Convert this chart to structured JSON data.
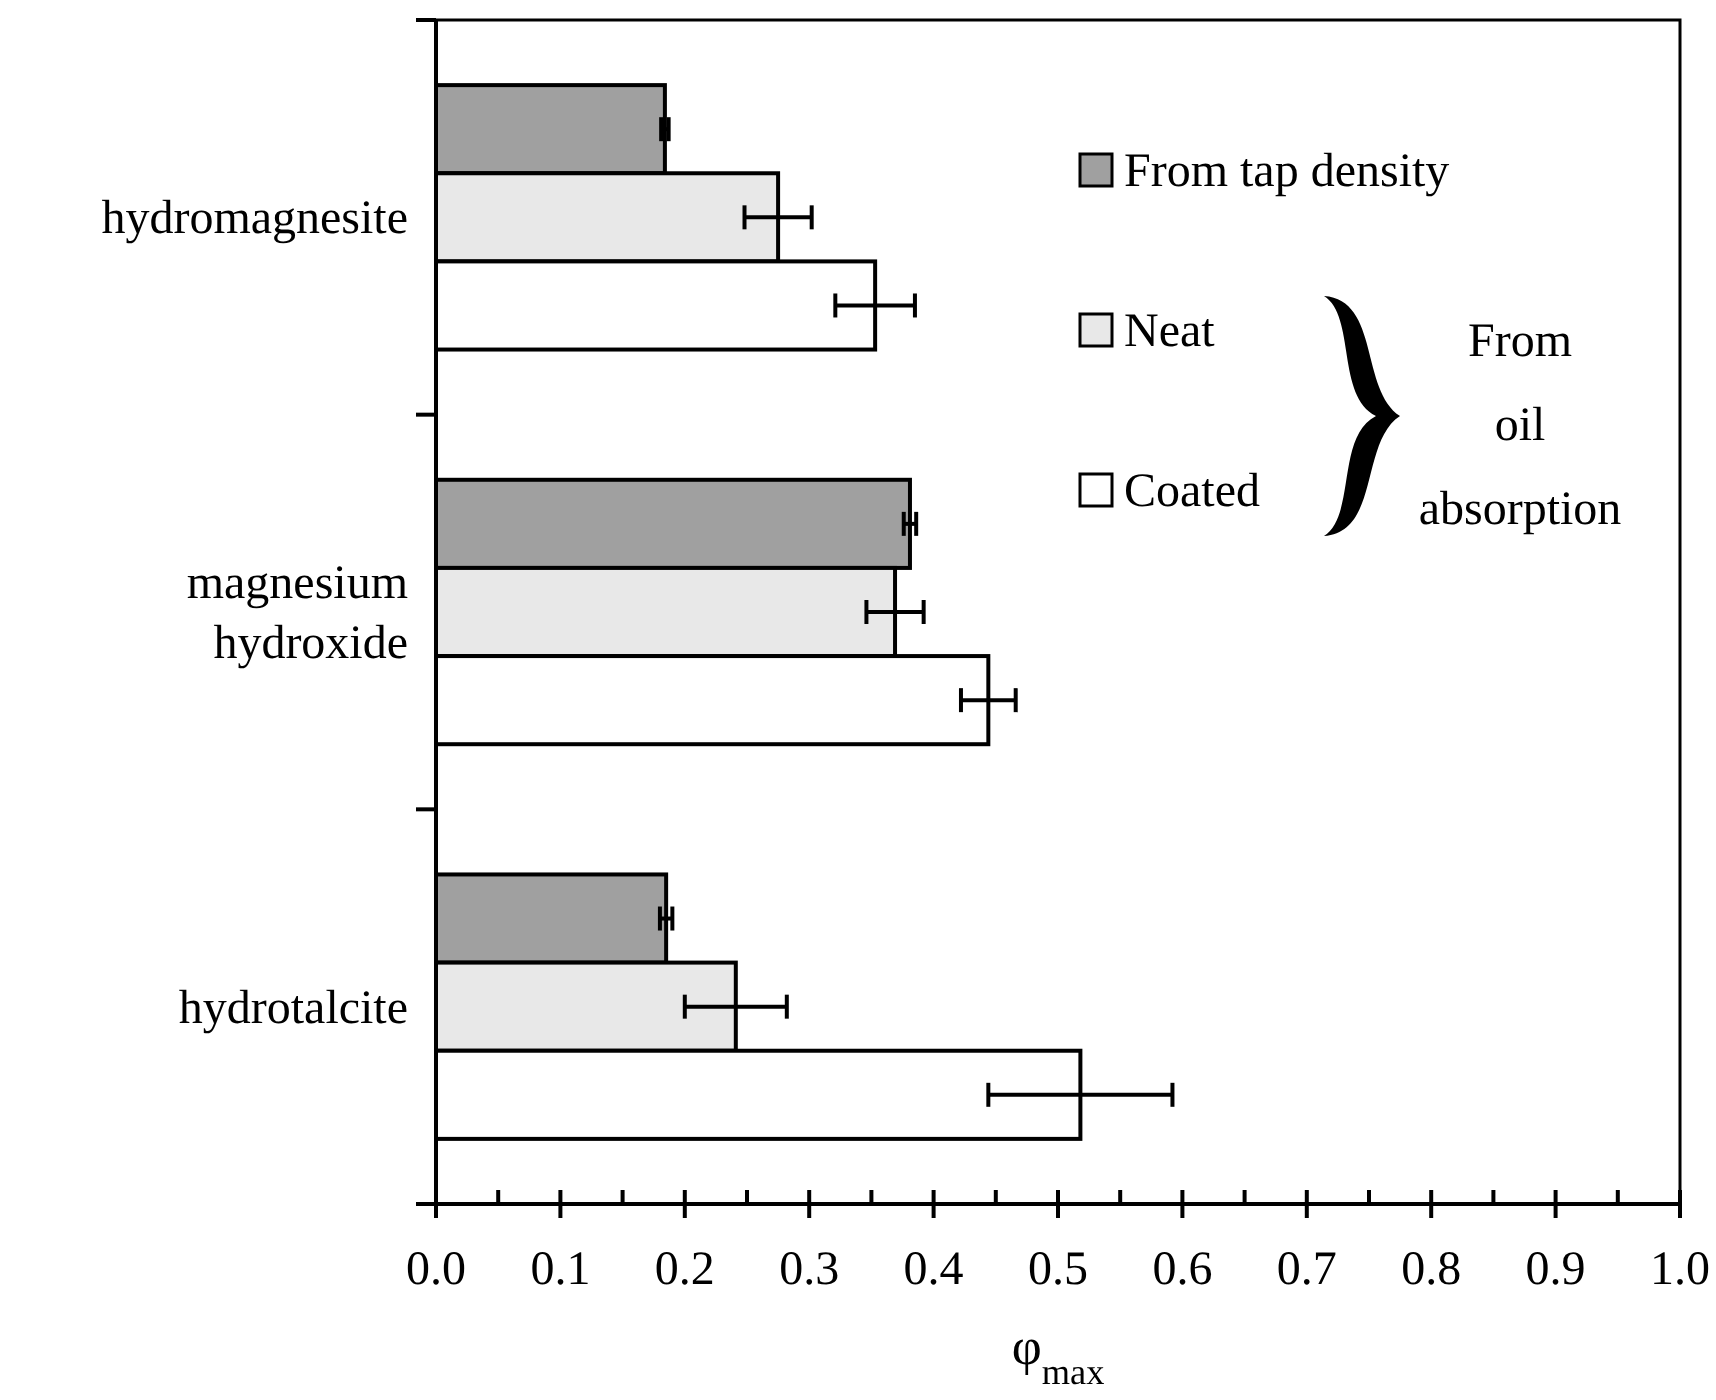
{
  "chart_data": {
    "type": "bar",
    "orientation": "horizontal",
    "xlabel": "φ$_{max}$",
    "categories": [
      "hydromagnesite",
      "magnesium hydroxide",
      "hydrotalcite"
    ],
    "series": [
      {
        "name": "From tap density",
        "color": "#a0a0a0",
        "values": [
          0.184,
          0.381,
          0.185
        ],
        "errors": [
          0.003,
          0.005,
          0.005
        ]
      },
      {
        "name": "Neat",
        "color": "#e8e8e8",
        "values": [
          0.275,
          0.369,
          0.241
        ],
        "errors": [
          0.027,
          0.023,
          0.041
        ]
      },
      {
        "name": "Coated",
        "color": "#ffffff",
        "values": [
          0.353,
          0.444,
          0.518
        ],
        "errors": [
          0.032,
          0.022,
          0.074
        ]
      }
    ],
    "xlim": [
      0,
      1
    ],
    "xticks": [
      {
        "value": 0,
        "label": "0.0"
      },
      0.1,
      0.2,
      0.3,
      0.4,
      0.5,
      0.6,
      0.7,
      0.8,
      0.9,
      {
        "value": 1,
        "label": "1.0"
      }
    ],
    "annotations": [
      "From oil absorption"
    ],
    "legend": "top right",
    "grid": false
  }
}
